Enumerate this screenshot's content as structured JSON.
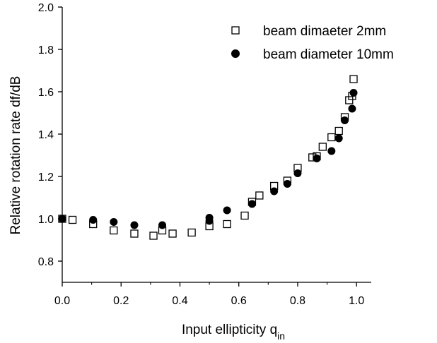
{
  "chart_data": {
    "type": "scatter",
    "xlabel": "Input ellipticity q",
    "xlabel_sub": "in",
    "ylabel": "Relative rotation rate df/dB",
    "xlim": [
      0.0,
      1.05
    ],
    "ylim": [
      0.7,
      2.0
    ],
    "x_ticks": [
      "0.0",
      "0.2",
      "0.4",
      "0.6",
      "0.8",
      "1.0"
    ],
    "y_ticks": [
      "0.8",
      "1.0",
      "1.2",
      "1.4",
      "1.6",
      "1.8",
      "2.0"
    ],
    "grid": false,
    "legend_position": "top-right",
    "series": [
      {
        "name": "beam dimaeter 2mm",
        "marker": "open-square",
        "x": [
          0.0,
          0.035,
          0.105,
          0.175,
          0.245,
          0.31,
          0.34,
          0.375,
          0.44,
          0.5,
          0.56,
          0.62,
          0.645,
          0.67,
          0.72,
          0.765,
          0.8,
          0.85,
          0.865,
          0.885,
          0.915,
          0.94,
          0.96,
          0.975,
          0.985,
          0.99
        ],
        "y": [
          1.0,
          0.995,
          0.975,
          0.945,
          0.93,
          0.92,
          0.945,
          0.93,
          0.935,
          0.965,
          0.975,
          1.015,
          1.08,
          1.11,
          1.155,
          1.18,
          1.24,
          1.29,
          1.295,
          1.34,
          1.385,
          1.415,
          1.48,
          1.56,
          1.58,
          1.66
        ]
      },
      {
        "name": "beam diameter 10mm",
        "marker": "filled-circle",
        "x": [
          0.0,
          0.105,
          0.175,
          0.245,
          0.34,
          0.5,
          0.5,
          0.56,
          0.645,
          0.72,
          0.765,
          0.8,
          0.865,
          0.915,
          0.94,
          0.96,
          0.985,
          0.99
        ],
        "y": [
          1.0,
          0.995,
          0.985,
          0.97,
          0.97,
          1.005,
          0.99,
          1.04,
          1.07,
          1.13,
          1.165,
          1.215,
          1.285,
          1.32,
          1.38,
          1.465,
          1.52,
          1.595
        ]
      }
    ]
  },
  "colors": {
    "ink": "#000000",
    "background": "#ffffff"
  }
}
